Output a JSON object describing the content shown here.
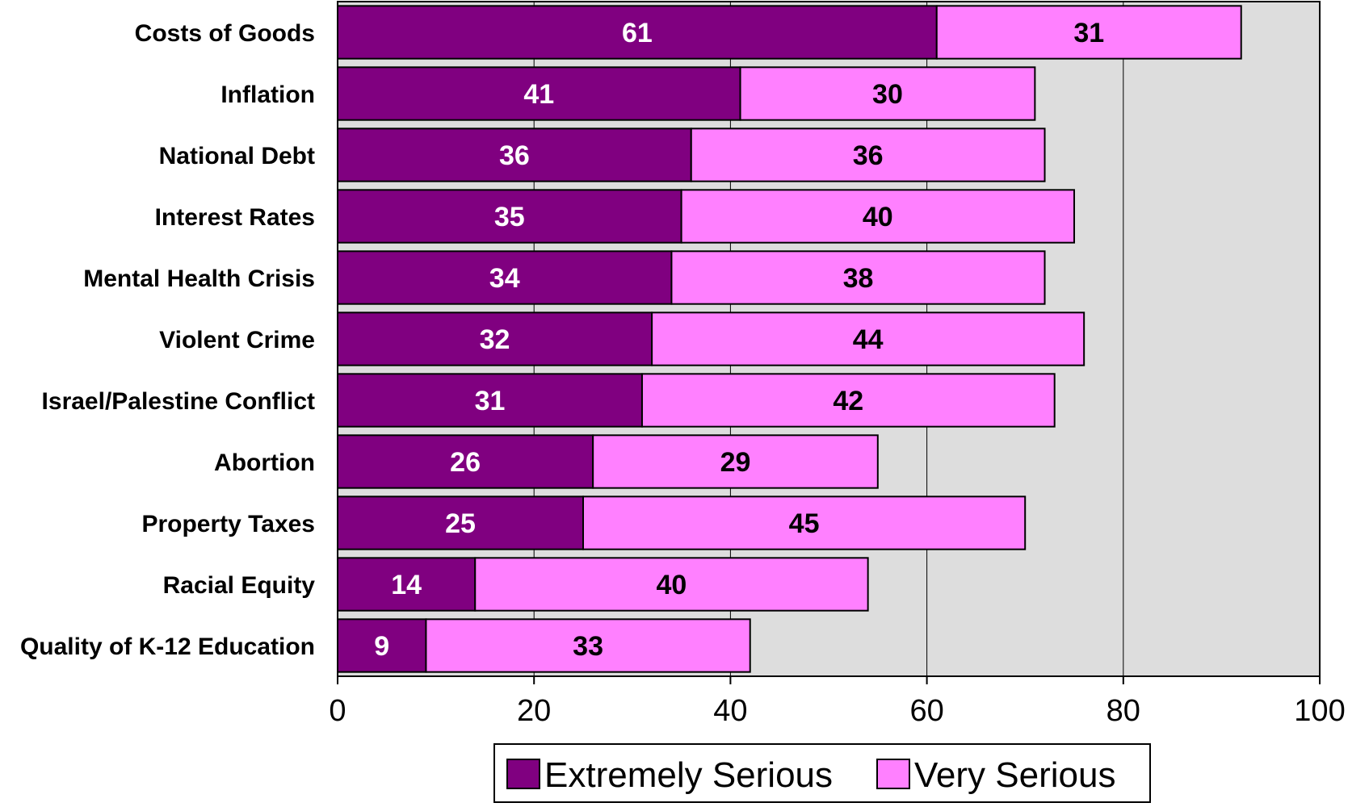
{
  "chart_data": {
    "type": "bar",
    "orientation": "horizontal",
    "stacked": true,
    "categories": [
      "Costs of Goods",
      "Inflation",
      "National Debt",
      "Interest Rates",
      "Mental Health Crisis",
      "Violent Crime",
      "Israel/Palestine Conflict",
      "Abortion",
      "Property Taxes",
      "Racial Equity",
      "Quality of K-12 Education"
    ],
    "series": [
      {
        "name": "Extremely Serious",
        "color": "#800080",
        "values": [
          61,
          41,
          36,
          35,
          34,
          32,
          31,
          26,
          25,
          14,
          9
        ]
      },
      {
        "name": "Very Serious",
        "color": "#ff80ff",
        "values": [
          31,
          30,
          36,
          40,
          38,
          44,
          42,
          29,
          45,
          40,
          33
        ]
      }
    ],
    "xlim": [
      0,
      100
    ],
    "xticks": [
      "0",
      "20",
      "40",
      "60",
      "80",
      "100"
    ],
    "grid": true,
    "plot_background": "#dddddd",
    "legend_position": "bottom",
    "title": "",
    "xlabel": "",
    "ylabel": ""
  }
}
